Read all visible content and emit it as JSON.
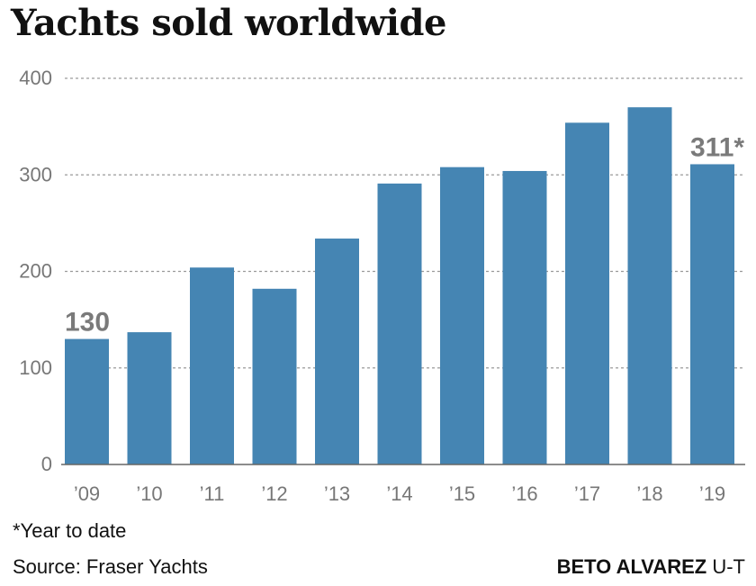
{
  "chart_data": {
    "type": "bar",
    "title": "Yachts sold worldwide",
    "categories": [
      "’09",
      "’10",
      "’11",
      "’12",
      "’13",
      "’14",
      "’15",
      "’16",
      "’17",
      "’18",
      "’19"
    ],
    "values": [
      130,
      137,
      204,
      182,
      234,
      291,
      308,
      304,
      354,
      370,
      311
    ],
    "ylim": [
      0,
      400
    ],
    "yticks": [
      "0",
      "100",
      "200",
      "300",
      "400"
    ],
    "grid": true,
    "bar_color": "#4585b3",
    "data_labels": [
      {
        "index": 0,
        "text": "130"
      },
      {
        "index": 10,
        "text": "311*"
      }
    ]
  },
  "footnote": "*Year to date",
  "source": "Source: Fraser Yachts",
  "credit": {
    "name": "BETO ALVAREZ",
    "org": "U-T"
  }
}
